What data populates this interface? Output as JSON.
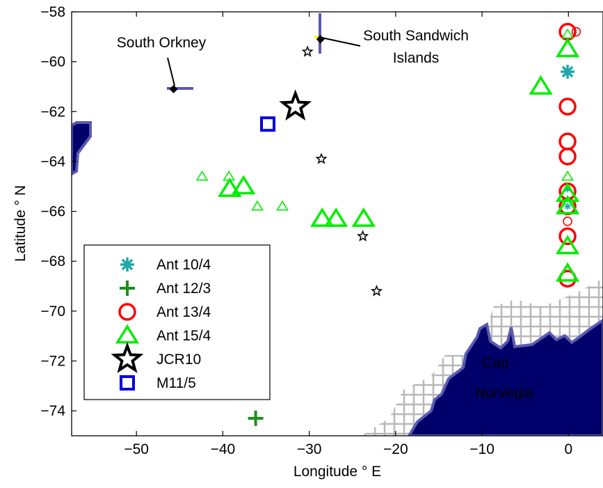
{
  "chart_data": {
    "type": "scatter",
    "xlabel": "Longitude ° E",
    "ylabel": "Latitude ° N",
    "xlim": [
      -57.5,
      4
    ],
    "ylim": [
      -75,
      -58
    ],
    "xticks": [
      -50,
      -40,
      -30,
      -20,
      -10,
      0
    ],
    "yticks": [
      -58,
      -60,
      -62,
      -64,
      -66,
      -68,
      -70,
      -72,
      -74
    ],
    "xtick_labels": [
      "−50",
      "−40",
      "−30",
      "−20",
      "−10",
      "0"
    ],
    "ytick_labels": [
      "−58",
      "−60",
      "−62",
      "−64",
      "−66",
      "−68",
      "−70",
      "−72",
      "−74"
    ],
    "legend": {
      "placement": "lower-left",
      "entries": [
        {
          "label": "Ant 10/4",
          "marker": "asterisk",
          "color": "#1fa8a8"
        },
        {
          "label": "Ant 12/3",
          "marker": "plus",
          "color": "#1a8f1a"
        },
        {
          "label": "Ant 13/4",
          "marker": "circle",
          "color": "#ff0000"
        },
        {
          "label": "Ant 15/4",
          "marker": "triangle",
          "color": "#00ee00"
        },
        {
          "label": "JCR10",
          "marker": "star",
          "color": "#000000"
        },
        {
          "label": "M11/5",
          "marker": "square",
          "color": "#0000dd"
        }
      ]
    },
    "series": [
      {
        "name": "Ant 10/4",
        "marker": "asterisk",
        "color": "#1fa8a8",
        "points": [
          {
            "x": -0.1,
            "y": -60.4,
            "s": 2
          },
          {
            "x": -0.1,
            "y": -65.1,
            "s": 1
          },
          {
            "x": -0.1,
            "y": -65.8,
            "s": 1
          }
        ]
      },
      {
        "name": "Ant 12/3",
        "marker": "plus",
        "color": "#1a8f1a",
        "points": [
          {
            "x": -36.2,
            "y": -74.3,
            "s": 2
          }
        ]
      },
      {
        "name": "Ant 13/4",
        "marker": "circle",
        "color": "#ff0000",
        "points": [
          {
            "x": -0.1,
            "y": -58.8,
            "s": 2
          },
          {
            "x": 0.9,
            "y": -58.8,
            "s": 1
          },
          {
            "x": -0.1,
            "y": -61.8,
            "s": 2
          },
          {
            "x": -0.1,
            "y": -63.2,
            "s": 2
          },
          {
            "x": -0.1,
            "y": -63.8,
            "s": 2
          },
          {
            "x": -0.1,
            "y": -65.2,
            "s": 2
          },
          {
            "x": -0.1,
            "y": -65.8,
            "s": 2
          },
          {
            "x": -0.1,
            "y": -66.4,
            "s": 1
          },
          {
            "x": -0.1,
            "y": -67.0,
            "s": 2
          },
          {
            "x": -0.1,
            "y": -68.7,
            "s": 2
          }
        ]
      },
      {
        "name": "Ant 15/4",
        "marker": "triangle",
        "color": "#00ee00",
        "points": [
          {
            "x": -0.1,
            "y": -58.9,
            "s": 1
          },
          {
            "x": -0.1,
            "y": -59.5,
            "s": 2
          },
          {
            "x": -3.2,
            "y": -61.0,
            "s": 2
          },
          {
            "x": -42.4,
            "y": -64.6,
            "s": 1
          },
          {
            "x": -39.3,
            "y": -64.6,
            "s": 1
          },
          {
            "x": -39.2,
            "y": -65.1,
            "s": 2
          },
          {
            "x": -37.6,
            "y": -65.0,
            "s": 2
          },
          {
            "x": -36.0,
            "y": -65.8,
            "s": 1
          },
          {
            "x": -33.1,
            "y": -65.8,
            "s": 1
          },
          {
            "x": -28.5,
            "y": -66.3,
            "s": 2
          },
          {
            "x": -26.9,
            "y": -66.3,
            "s": 2
          },
          {
            "x": -23.7,
            "y": -66.3,
            "s": 2
          },
          {
            "x": -0.1,
            "y": -64.6,
            "s": 1
          },
          {
            "x": -0.1,
            "y": -65.3,
            "s": 2
          },
          {
            "x": -0.1,
            "y": -65.8,
            "s": 2
          },
          {
            "x": -0.1,
            "y": -67.4,
            "s": 2
          },
          {
            "x": -0.1,
            "y": -68.5,
            "s": 2
          }
        ]
      },
      {
        "name": "JCR10",
        "marker": "star",
        "color": "#000000",
        "points": [
          {
            "x": -31.6,
            "y": -61.8,
            "s": 2
          },
          {
            "x": -30.2,
            "y": -59.6,
            "s": 1
          },
          {
            "x": -28.6,
            "y": -63.9,
            "s": 1
          },
          {
            "x": -23.8,
            "y": -67.0,
            "s": 1
          },
          {
            "x": -22.2,
            "y": -69.2,
            "s": 1
          }
        ]
      },
      {
        "name": "M11/5",
        "marker": "square",
        "color": "#0000dd",
        "points": [
          {
            "x": -34.8,
            "y": -62.5,
            "s": 2
          }
        ]
      }
    ],
    "annotations": [
      {
        "text": "South Orkney",
        "x": -45.7,
        "y": -61.1
      },
      {
        "text": "South Sandwich",
        "text2": "Islands",
        "x": -28.7,
        "y": -59.1
      },
      {
        "text": "Cap",
        "text2": "Norvegia",
        "x": -10,
        "y": -72.5
      }
    ]
  }
}
